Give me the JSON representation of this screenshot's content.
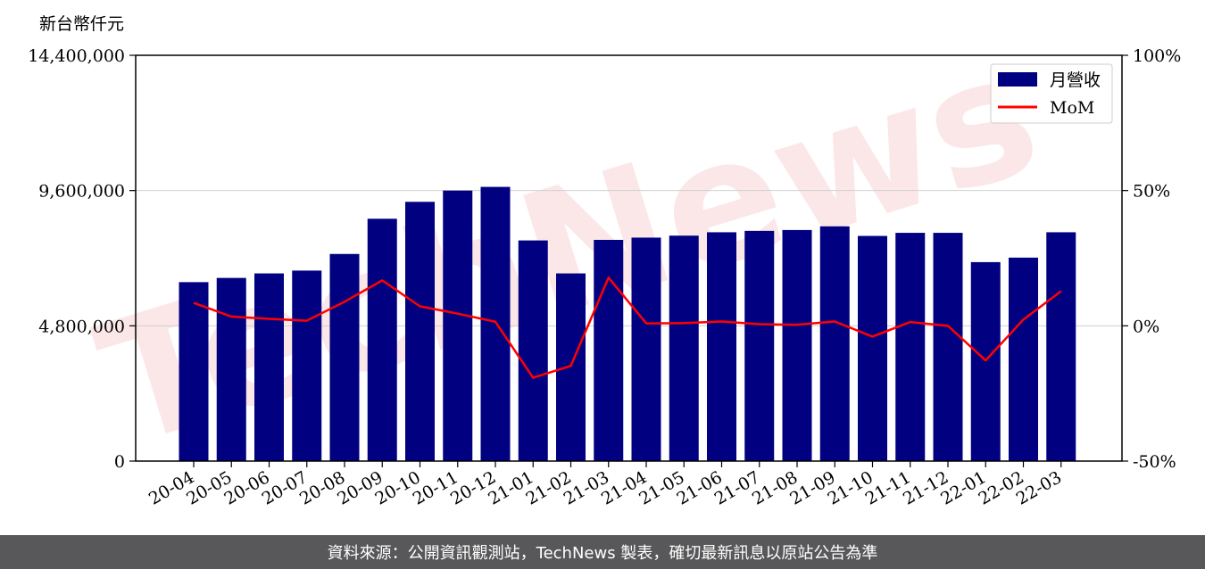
{
  "chart_data": {
    "type": "bar",
    "unit_label": "新台幣仟元",
    "categories": [
      "20-04",
      "20-05",
      "20-06",
      "20-07",
      "20-08",
      "20-09",
      "20-10",
      "20-11",
      "20-12",
      "21-01",
      "21-02",
      "21-03",
      "21-04",
      "21-05",
      "21-06",
      "21-07",
      "21-08",
      "21-09",
      "21-10",
      "21-11",
      "21-12",
      "22-01",
      "22-02",
      "22-03"
    ],
    "series": [
      {
        "name": "月營收",
        "type": "bar",
        "axis": "left",
        "color": "#000080",
        "values": [
          6350000,
          6500000,
          6660000,
          6760000,
          7350000,
          8600000,
          9200000,
          9600000,
          9730000,
          7830000,
          6660000,
          7850000,
          7930000,
          8000000,
          8120000,
          8170000,
          8200000,
          8330000,
          7990000,
          8100000,
          8100000,
          7060000,
          7220000,
          8120000
        ]
      },
      {
        "name": "MoM",
        "type": "line",
        "axis": "right",
        "color": "#ff0000",
        "values": [
          8.5,
          3.4,
          2.6,
          1.9,
          8.9,
          16.8,
          7.2,
          4.5,
          1.5,
          -19.2,
          -14.8,
          17.8,
          0.9,
          1.0,
          1.6,
          0.6,
          0.4,
          1.6,
          -4.0,
          1.4,
          0.0,
          -12.8,
          2.3,
          12.8
        ]
      }
    ],
    "ylim_left": [
      0,
      14400000
    ],
    "ylim_right": [
      -50,
      100
    ],
    "left_ticks": [
      {
        "value": 0,
        "label": "0"
      },
      {
        "value": 4800000,
        "label": "4,800,000"
      },
      {
        "value": 9600000,
        "label": "9,600,000"
      },
      {
        "value": 14400000,
        "label": "14,400,000"
      }
    ],
    "right_ticks": [
      {
        "value": -50,
        "label": "-50%"
      },
      {
        "value": 0,
        "label": "0%"
      },
      {
        "value": 50,
        "label": "50%"
      },
      {
        "value": 100,
        "label": "100%"
      }
    ],
    "grid": "horizontal",
    "legend_position": "top-right",
    "watermark": "TechNews"
  },
  "footer": {
    "source_text": "資料來源：公開資訊觀測站，TechNews 製表，確切最新訊息以原站公告為準"
  }
}
